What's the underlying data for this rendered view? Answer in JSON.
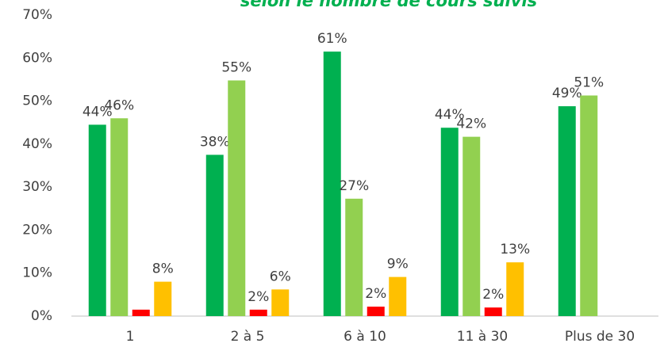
{
  "chart_data": {
    "type": "bar",
    "title": "selon le nombre de cours suivis",
    "categories": [
      "1",
      "2 à 5",
      "6 à 10",
      "11 à 30",
      "Plus de 30"
    ],
    "series": [
      {
        "color": "#00b050",
        "values": [
          44.5,
          37.5,
          61.5,
          43.8,
          48.8
        ],
        "value_labels": [
          "44%",
          "38%",
          "61%",
          "44%",
          "49%"
        ]
      },
      {
        "color": "#92d050",
        "values": [
          46,
          54.8,
          27.3,
          41.7,
          51.3
        ],
        "value_labels": [
          "46%",
          "55%",
          "27%",
          "42%",
          "51%"
        ]
      },
      {
        "color": "#ff0000",
        "values": [
          1.5,
          1.5,
          2.2,
          2.0,
          null
        ],
        "value_labels": [
          null,
          "2%",
          "2%",
          "2%",
          null
        ]
      },
      {
        "color": "#ffc000",
        "values": [
          8,
          6.2,
          9.1,
          12.5,
          null
        ],
        "value_labels": [
          "8%",
          "6%",
          "9%",
          "13%",
          null
        ]
      }
    ],
    "ylim": [
      0,
      70
    ],
    "yticks": [
      {
        "value": 0,
        "label": "0%"
      },
      {
        "value": 10,
        "label": "10%"
      },
      {
        "value": 20,
        "label": "20%"
      },
      {
        "value": 30,
        "label": "30%"
      },
      {
        "value": 40,
        "label": "40%"
      },
      {
        "value": 50,
        "label": "50%"
      },
      {
        "value": 60,
        "label": "60%"
      },
      {
        "value": 70,
        "label": "70%"
      }
    ],
    "grid": false
  }
}
